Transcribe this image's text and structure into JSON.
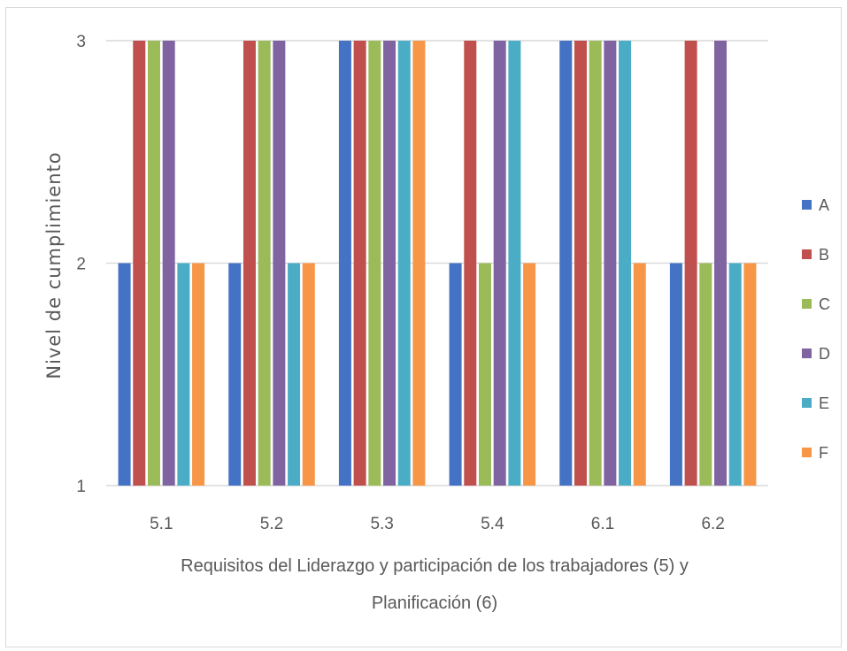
{
  "chart_data": {
    "type": "bar",
    "categories": [
      "5.1",
      "5.2",
      "5.3",
      "5.4",
      "6.1",
      "6.2"
    ],
    "series": [
      {
        "name": "A",
        "color": "#4472c4",
        "values": [
          2,
          2,
          3,
          2,
          3,
          2
        ]
      },
      {
        "name": "B",
        "color": "#c0504d",
        "values": [
          3,
          3,
          3,
          3,
          3,
          3
        ]
      },
      {
        "name": "C",
        "color": "#9bbb59",
        "values": [
          3,
          3,
          3,
          2,
          3,
          2
        ]
      },
      {
        "name": "D",
        "color": "#8064a2",
        "values": [
          3,
          3,
          3,
          3,
          3,
          3
        ]
      },
      {
        "name": "E",
        "color": "#4bacc6",
        "values": [
          2,
          2,
          3,
          3,
          3,
          2
        ]
      },
      {
        "name": "F",
        "color": "#f79646",
        "values": [
          2,
          2,
          3,
          2,
          2,
          2
        ]
      }
    ],
    "ylabel": "Nivel de cumplimiento",
    "xlabel_lines": [
      "Requisitos del Liderazgo y participación de los trabajadores (5) y",
      "Planificación (6)"
    ],
    "ylim": [
      1,
      3
    ],
    "yticks": [
      1,
      2,
      3
    ],
    "grid": true,
    "legend_position": "right"
  }
}
